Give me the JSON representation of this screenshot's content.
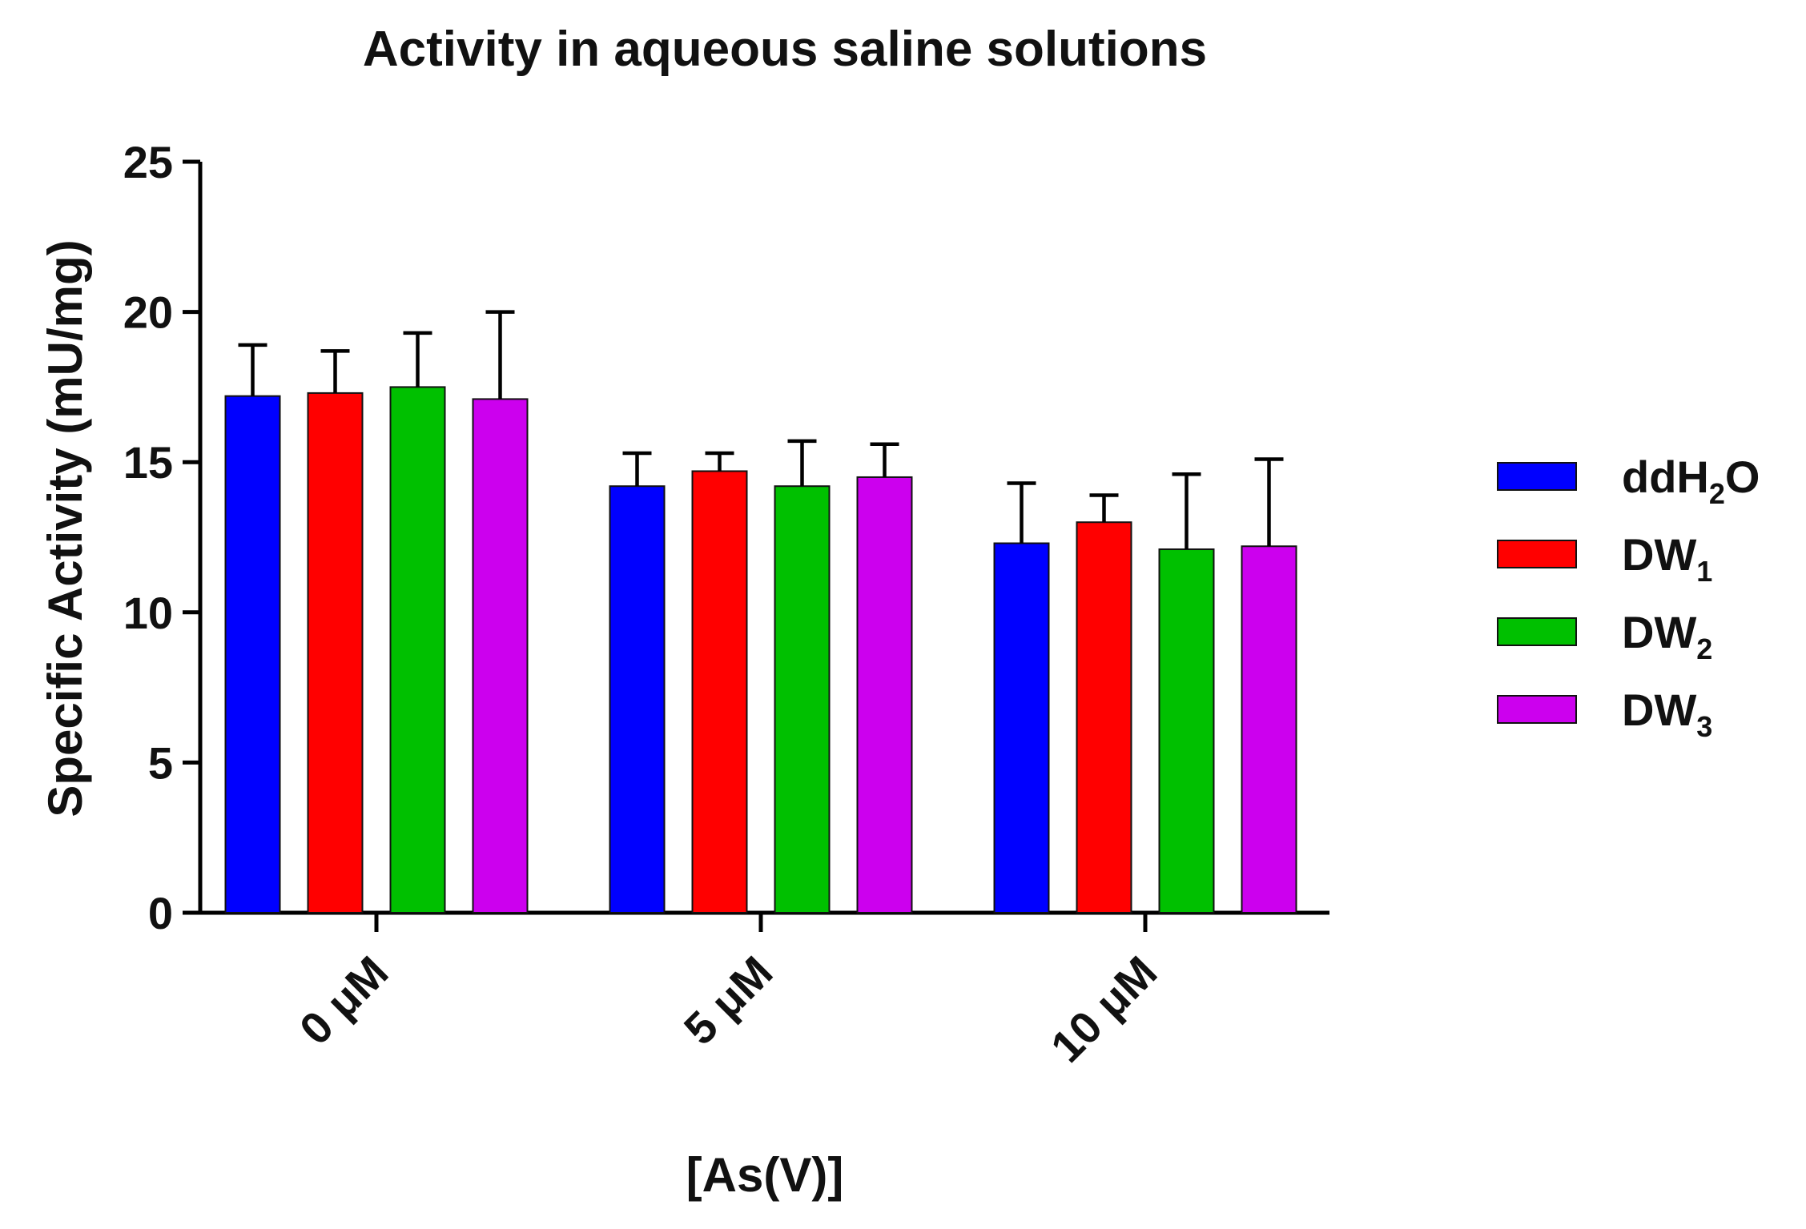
{
  "chart_data": {
    "type": "bar",
    "title": "Activity in aqueous saline solutions",
    "xlabel": "[As(V)]",
    "ylabel": "Specific Activity (mU/mg)",
    "ylim": [
      0,
      25
    ],
    "yticks": [
      "0",
      "5",
      "10",
      "15",
      "20",
      "25"
    ],
    "categories": [
      "0 μM",
      "5 μM",
      "10 μM"
    ],
    "legend_position": "right",
    "grid": false,
    "series": [
      {
        "name": "ddH",
        "sub": "2",
        "suffix": "O",
        "color": "#0000ff",
        "values": [
          17.2,
          14.2,
          12.3
        ],
        "errors": [
          1.7,
          1.1,
          2.0
        ]
      },
      {
        "name": "DW",
        "sub": "1",
        "suffix": "",
        "color": "#ff0000",
        "values": [
          17.3,
          14.7,
          13.0
        ],
        "errors": [
          1.4,
          0.6,
          0.9
        ]
      },
      {
        "name": "DW",
        "sub": "2",
        "suffix": "",
        "color": "#00c000",
        "values": [
          17.5,
          14.2,
          12.1
        ],
        "errors": [
          1.8,
          1.5,
          2.5
        ]
      },
      {
        "name": "DW",
        "sub": "3",
        "suffix": "",
        "color": "#cc00ee",
        "values": [
          17.1,
          14.5,
          12.2
        ],
        "errors": [
          2.9,
          1.1,
          2.9
        ]
      }
    ]
  }
}
